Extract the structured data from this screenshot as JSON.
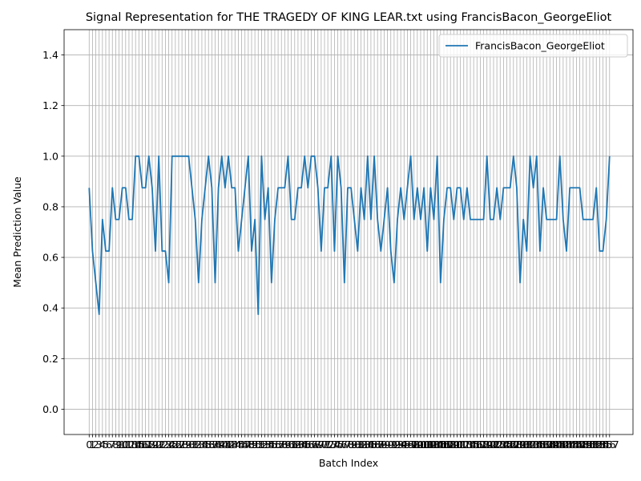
{
  "chart_data": {
    "type": "line",
    "title": "Signal Representation for THE TRAGEDY OF KING LEAR.txt using FrancisBacon_GeorgeEliot",
    "xlabel": "Batch Index",
    "ylabel": "Mean Prediction Value",
    "ylim": [
      -0.1,
      1.5
    ],
    "yticks": [
      "0.0",
      "0.2",
      "0.4",
      "0.6",
      "0.8",
      "1.0",
      "1.2",
      "1.4"
    ],
    "grid": true,
    "legend": "top-right",
    "series": [
      {
        "name": "FrancisBacon_GeorgeEliot",
        "color": "#1f77b4",
        "values": [
          0.875,
          0.625,
          0.5,
          0.375,
          0.75,
          0.625,
          0.625,
          0.875,
          0.75,
          0.75,
          0.875,
          0.875,
          0.75,
          0.75,
          1.0,
          1.0,
          0.875,
          0.875,
          1.0,
          0.875,
          0.625,
          1.0,
          0.625,
          0.625,
          0.5,
          1.0,
          1.0,
          1.0,
          1.0,
          1.0,
          1.0,
          0.875,
          0.75,
          0.5,
          0.75,
          0.875,
          1.0,
          0.875,
          0.5,
          0.875,
          1.0,
          0.875,
          1.0,
          0.875,
          0.875,
          0.625,
          0.75,
          0.875,
          1.0,
          0.625,
          0.75,
          0.375,
          1.0,
          0.75,
          0.875,
          0.5,
          0.75,
          0.875,
          0.875,
          0.875,
          1.0,
          0.75,
          0.75,
          0.875,
          0.875,
          1.0,
          0.875,
          1.0,
          1.0,
          0.875,
          0.625,
          0.875,
          0.875,
          1.0,
          0.625,
          1.0,
          0.875,
          0.5,
          0.875,
          0.875,
          0.75,
          0.625,
          0.875,
          0.75,
          1.0,
          0.75,
          1.0,
          0.75,
          0.625,
          0.75,
          0.875,
          0.625,
          0.5,
          0.75,
          0.875,
          0.75,
          0.875,
          1.0,
          0.75,
          0.875,
          0.75,
          0.875,
          0.625,
          0.875,
          0.75,
          1.0,
          0.5,
          0.75,
          0.875,
          0.875,
          0.75,
          0.875,
          0.875,
          0.75,
          0.875,
          0.75,
          0.75,
          0.75,
          0.75,
          0.75,
          1.0,
          0.75,
          0.75,
          0.875,
          0.75,
          0.875,
          0.875,
          0.875,
          1.0,
          0.875,
          0.5,
          0.75,
          0.625,
          1.0,
          0.875,
          1.0,
          0.625,
          0.875,
          0.75,
          0.75,
          0.75,
          0.75,
          1.0,
          0.75,
          0.625,
          0.875,
          0.875,
          0.875,
          0.875,
          0.75,
          0.75,
          0.75,
          0.75,
          0.875,
          0.625,
          0.625,
          0.75,
          1.0
        ]
      }
    ]
  }
}
